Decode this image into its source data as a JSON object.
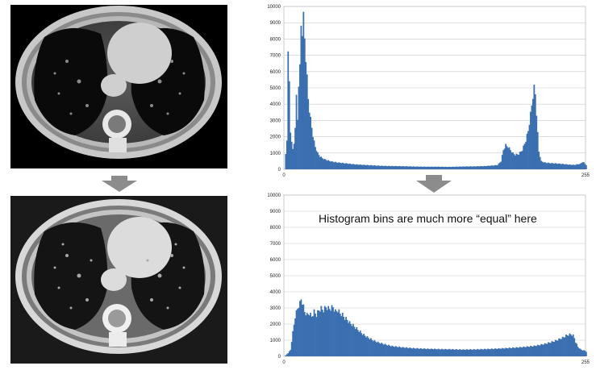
{
  "figure": {
    "annotation": "Histogram bins are much more “equal” here"
  },
  "colors": {
    "bar": "#3a6fb0",
    "grid": "#c8c8c8",
    "arrow": "#8c8c8c"
  },
  "images": [
    {
      "name": "original-ct-slice",
      "description_icon": "ct-chest-scan-icon"
    },
    {
      "name": "equalized-ct-slice",
      "description_icon": "ct-chest-scan-icon"
    }
  ],
  "chart_data": [
    {
      "type": "bar",
      "title": "",
      "xlabel": "",
      "ylabel": "",
      "xlim": [
        0,
        255
      ],
      "ylim": [
        0,
        10000
      ],
      "y_ticks": [
        0,
        1000,
        2000,
        3000,
        4000,
        5000,
        6000,
        7000,
        8000,
        9000,
        10000
      ],
      "x_tick_labels": [
        "0",
        "255"
      ],
      "grid": true,
      "series": [
        {
          "points": [
            [
              0,
              0
            ],
            [
              2,
              1800
            ],
            [
              3,
              7700
            ],
            [
              4,
              5200
            ],
            [
              5,
              2300
            ],
            [
              6,
              1800
            ],
            [
              7,
              1200
            ],
            [
              8,
              1600
            ],
            [
              9,
              2700
            ],
            [
              10,
              4400
            ],
            [
              11,
              3100
            ],
            [
              12,
              5400
            ],
            [
              13,
              6200
            ],
            [
              14,
              9000
            ],
            [
              15,
              8700
            ],
            [
              16,
              9300
            ],
            [
              17,
              8200
            ],
            [
              18,
              7000
            ],
            [
              19,
              5600
            ],
            [
              20,
              4400
            ],
            [
              21,
              3700
            ],
            [
              22,
              3100
            ],
            [
              23,
              2600
            ],
            [
              24,
              2100
            ],
            [
              25,
              1700
            ],
            [
              26,
              1400
            ],
            [
              27,
              1200
            ],
            [
              28,
              1000
            ],
            [
              30,
              800
            ],
            [
              33,
              650
            ],
            [
              36,
              560
            ],
            [
              40,
              480
            ],
            [
              45,
              420
            ],
            [
              50,
              380
            ],
            [
              55,
              340
            ],
            [
              60,
              300
            ],
            [
              70,
              260
            ],
            [
              80,
              220
            ],
            [
              90,
              200
            ],
            [
              100,
              190
            ],
            [
              110,
              170
            ],
            [
              120,
              160
            ],
            [
              130,
              160
            ],
            [
              140,
              150
            ],
            [
              150,
              170
            ],
            [
              160,
              180
            ],
            [
              170,
              200
            ],
            [
              180,
              260
            ],
            [
              183,
              500
            ],
            [
              185,
              1200
            ],
            [
              187,
              1500
            ],
            [
              189,
              1400
            ],
            [
              191,
              1200
            ],
            [
              193,
              1000
            ],
            [
              195,
              900
            ],
            [
              198,
              950
            ],
            [
              201,
              1200
            ],
            [
              204,
              1800
            ],
            [
              206,
              2400
            ],
            [
              208,
              3400
            ],
            [
              210,
              4600
            ],
            [
              211,
              5000
            ],
            [
              212,
              4700
            ],
            [
              213,
              3500
            ],
            [
              214,
              2200
            ],
            [
              215,
              1100
            ],
            [
              217,
              500
            ],
            [
              220,
              420
            ],
            [
              225,
              380
            ],
            [
              230,
              360
            ],
            [
              235,
              330
            ],
            [
              240,
              290
            ],
            [
              245,
              270
            ],
            [
              250,
              340
            ],
            [
              252,
              460
            ],
            [
              253,
              420
            ],
            [
              255,
              260
            ]
          ]
        }
      ]
    },
    {
      "type": "bar",
      "title": "",
      "xlabel": "",
      "ylabel": "",
      "xlim": [
        0,
        255
      ],
      "ylim": [
        0,
        10000
      ],
      "y_ticks": [
        0,
        1000,
        2000,
        3000,
        4000,
        5000,
        6000,
        7000,
        8000,
        9000,
        10000
      ],
      "x_tick_labels": [
        "0",
        "255"
      ],
      "grid": true,
      "series": [
        {
          "points": [
            [
              0,
              0
            ],
            [
              3,
              200
            ],
            [
              5,
              400
            ],
            [
              7,
              1500
            ],
            [
              9,
              2500
            ],
            [
              11,
              3000
            ],
            [
              12,
              3200
            ],
            [
              13,
              3300
            ],
            [
              14,
              3600
            ],
            [
              15,
              3400
            ],
            [
              17,
              2800
            ],
            [
              19,
              2600
            ],
            [
              21,
              2700
            ],
            [
              23,
              2500
            ],
            [
              25,
              2800
            ],
            [
              27,
              2600
            ],
            [
              29,
              2900
            ],
            [
              31,
              3000
            ],
            [
              33,
              2900
            ],
            [
              35,
              3100
            ],
            [
              37,
              3000
            ],
            [
              39,
              3000
            ],
            [
              41,
              3100
            ],
            [
              43,
              2800
            ],
            [
              45,
              2900
            ],
            [
              47,
              2700
            ],
            [
              49,
              2600
            ],
            [
              51,
              2400
            ],
            [
              53,
              2300
            ],
            [
              55,
              2100
            ],
            [
              57,
              2000
            ],
            [
              60,
              1800
            ],
            [
              63,
              1600
            ],
            [
              66,
              1400
            ],
            [
              70,
              1200
            ],
            [
              75,
              1000
            ],
            [
              80,
              850
            ],
            [
              85,
              750
            ],
            [
              90,
              650
            ],
            [
              95,
              600
            ],
            [
              100,
              560
            ],
            [
              110,
              500
            ],
            [
              120,
              470
            ],
            [
              130,
              450
            ],
            [
              140,
              440
            ],
            [
              150,
              420
            ],
            [
              160,
              430
            ],
            [
              170,
              450
            ],
            [
              180,
              480
            ],
            [
              190,
              520
            ],
            [
              200,
              570
            ],
            [
              210,
              640
            ],
            [
              215,
              700
            ],
            [
              220,
              780
            ],
            [
              225,
              880
            ],
            [
              230,
              1000
            ],
            [
              233,
              1100
            ],
            [
              236,
              1200
            ],
            [
              238,
              1300
            ],
            [
              240,
              1350
            ],
            [
              242,
              1380
            ],
            [
              244,
              1300
            ],
            [
              245,
              1150
            ],
            [
              246,
              900
            ],
            [
              248,
              600
            ],
            [
              250,
              450
            ],
            [
              252,
              380
            ],
            [
              254,
              350
            ],
            [
              255,
              300
            ]
          ]
        }
      ]
    }
  ]
}
